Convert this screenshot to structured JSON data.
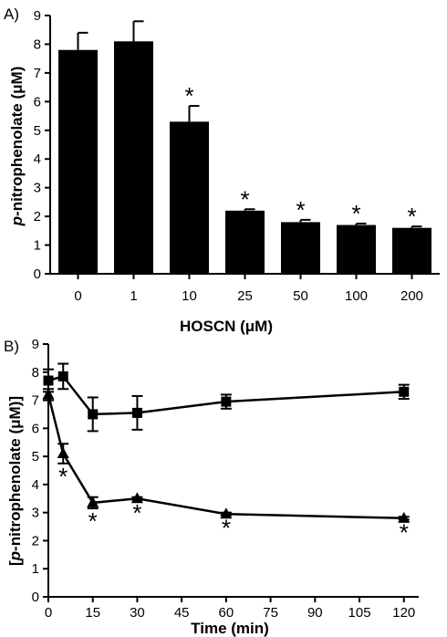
{
  "chart_data": [
    {
      "type": "bar",
      "panel_label": "A)",
      "categories": [
        "0",
        "1",
        "10",
        "25",
        "50",
        "100",
        "200"
      ],
      "values": [
        7.8,
        8.1,
        5.3,
        2.2,
        1.8,
        1.7,
        1.6
      ],
      "errors": [
        0.6,
        0.7,
        0.55,
        0.05,
        0.08,
        0.05,
        0.05
      ],
      "significance": [
        "",
        "",
        "*",
        "*",
        "*",
        "*",
        "*"
      ],
      "xlabel": "HOSCN (μM)",
      "ylabel": "p-nitrophenolate (μM)",
      "ylim": [
        0,
        9
      ],
      "yticks": [
        "0",
        "1",
        "2",
        "3",
        "4",
        "5",
        "6",
        "7",
        "8",
        "9"
      ],
      "bar_color": "#000000"
    },
    {
      "type": "line",
      "panel_label": "B)",
      "xlabel": "Time (min)",
      "ylabel": "[p-nitrophenolate (μM)]",
      "xlim": [
        0,
        125
      ],
      "ylim": [
        0,
        9
      ],
      "xticks": [
        "0",
        "15",
        "30",
        "45",
        "60",
        "75",
        "90",
        "105",
        "120"
      ],
      "yticks": [
        "0",
        "1",
        "2",
        "3",
        "4",
        "5",
        "6",
        "7",
        "8",
        "9"
      ],
      "series": [
        {
          "marker": "square",
          "x": [
            0,
            5,
            15,
            30,
            60,
            120
          ],
          "y": [
            7.7,
            7.85,
            6.5,
            6.55,
            6.95,
            7.3
          ],
          "errors": [
            0.4,
            0.45,
            0.6,
            0.6,
            0.25,
            0.25
          ]
        },
        {
          "marker": "triangle",
          "x": [
            0,
            5,
            15,
            30,
            60,
            120
          ],
          "y": [
            7.2,
            5.1,
            3.35,
            3.5,
            2.95,
            2.8
          ],
          "errors": [
            0.2,
            0.35,
            0.2,
            0.05,
            0.05,
            0.05
          ],
          "significance": [
            "",
            "*",
            "*",
            "*",
            "*",
            "*"
          ]
        }
      ]
    }
  ]
}
